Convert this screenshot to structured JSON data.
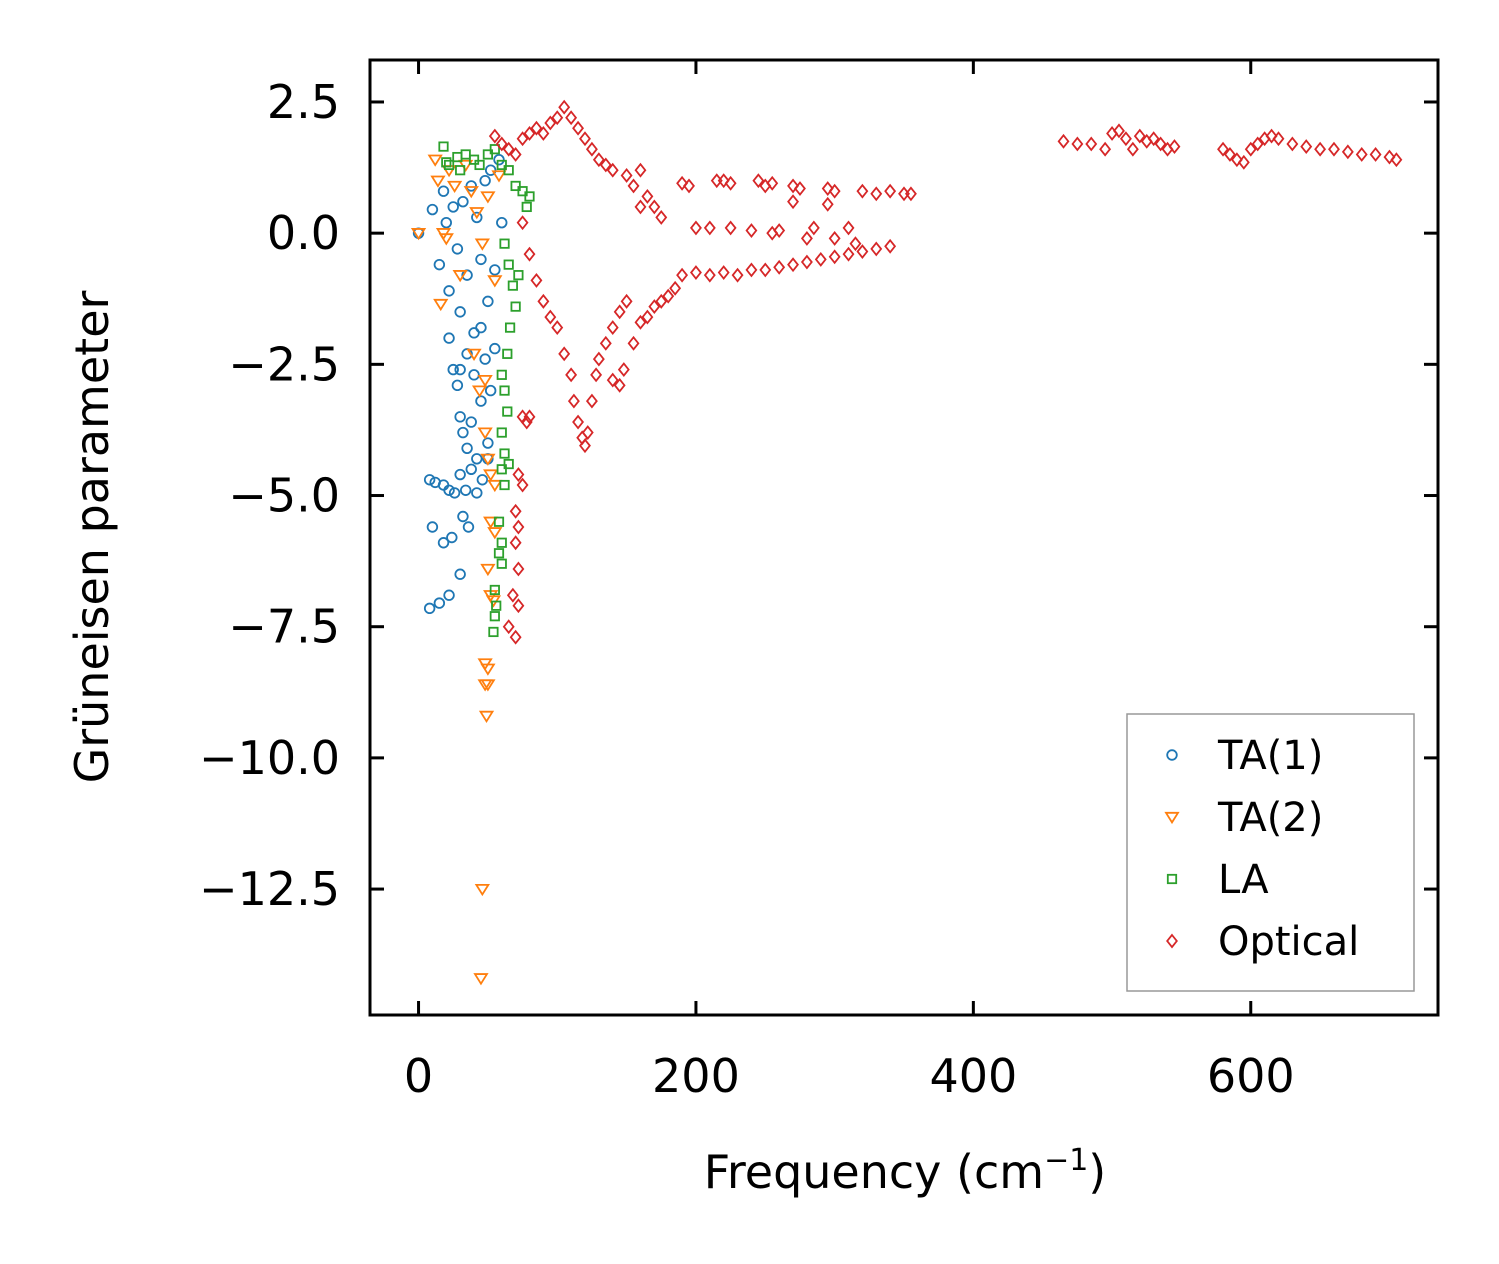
{
  "chart_data": {
    "type": "scatter",
    "title": "",
    "xlabel": "Frequency (cm",
    "xlabel_sup": "−1",
    "xlabel_close": ")",
    "ylabel": "Grüneisen parameter",
    "xlim": [
      -35,
      735
    ],
    "ylim": [
      -14.9,
      3.3
    ],
    "x_ticks": [
      {
        "value": 0,
        "label": "0"
      },
      {
        "value": 200,
        "label": "200"
      },
      {
        "value": 400,
        "label": "400"
      },
      {
        "value": 600,
        "label": "600"
      }
    ],
    "y_ticks": [
      {
        "value": 2.5,
        "label": "2.5"
      },
      {
        "value": 0,
        "label": "0.0"
      },
      {
        "value": -2.5,
        "label": "−2.5"
      },
      {
        "value": -5,
        "label": "−5.0"
      },
      {
        "value": -7.5,
        "label": "−7.5"
      },
      {
        "value": -10,
        "label": "−10.0"
      },
      {
        "value": -12.5,
        "label": "−12.5"
      }
    ],
    "legend_position": "lower-right",
    "series": [
      {
        "name": "TA(1)",
        "color": "#1f77b4",
        "marker": "circle",
        "points": [
          [
            0,
            0
          ],
          [
            10,
            0.45
          ],
          [
            15,
            -0.6
          ],
          [
            18,
            0.8
          ],
          [
            20,
            0.2
          ],
          [
            22,
            -1.1
          ],
          [
            25,
            0.5
          ],
          [
            28,
            -0.3
          ],
          [
            30,
            -1.5
          ],
          [
            32,
            0.6
          ],
          [
            35,
            -0.8
          ],
          [
            38,
            0.9
          ],
          [
            40,
            -1.9
          ],
          [
            42,
            0.3
          ],
          [
            45,
            -0.5
          ],
          [
            48,
            1.0
          ],
          [
            50,
            -1.3
          ],
          [
            52,
            1.2
          ],
          [
            55,
            -0.7
          ],
          [
            58,
            1.4
          ],
          [
            60,
            0.2
          ],
          [
            22,
            -2.0
          ],
          [
            25,
            -2.6
          ],
          [
            28,
            -2.9
          ],
          [
            30,
            -3.5
          ],
          [
            32,
            -3.8
          ],
          [
            35,
            -4.1
          ],
          [
            38,
            -3.6
          ],
          [
            40,
            -2.7
          ],
          [
            42,
            -4.3
          ],
          [
            45,
            -3.2
          ],
          [
            48,
            -2.4
          ],
          [
            50,
            -4.0
          ],
          [
            52,
            -3.0
          ],
          [
            55,
            -2.2
          ],
          [
            35,
            -2.3
          ],
          [
            30,
            -2.6
          ],
          [
            45,
            -1.8
          ],
          [
            8,
            -4.7
          ],
          [
            12,
            -4.75
          ],
          [
            18,
            -4.8
          ],
          [
            22,
            -4.9
          ],
          [
            26,
            -4.95
          ],
          [
            30,
            -4.6
          ],
          [
            34,
            -4.9
          ],
          [
            38,
            -4.5
          ],
          [
            42,
            -4.95
          ],
          [
            46,
            -4.7
          ],
          [
            50,
            -4.3
          ],
          [
            10,
            -5.6
          ],
          [
            18,
            -5.9
          ],
          [
            24,
            -5.8
          ],
          [
            32,
            -5.4
          ],
          [
            36,
            -5.6
          ],
          [
            30,
            -6.5
          ],
          [
            8,
            -7.15
          ],
          [
            15,
            -7.05
          ],
          [
            22,
            -6.9
          ]
        ]
      },
      {
        "name": "TA(2)",
        "color": "#ff7f0e",
        "marker": "triangle-down",
        "points": [
          [
            0,
            0
          ],
          [
            12,
            1.4
          ],
          [
            14,
            1.0
          ],
          [
            16,
            -1.35
          ],
          [
            18,
            0.0
          ],
          [
            20,
            -0.1
          ],
          [
            22,
            1.2
          ],
          [
            26,
            0.9
          ],
          [
            30,
            -0.8
          ],
          [
            34,
            1.3
          ],
          [
            38,
            0.8
          ],
          [
            42,
            0.4
          ],
          [
            46,
            -0.2
          ],
          [
            50,
            0.7
          ],
          [
            55,
            -0.9
          ],
          [
            58,
            1.1
          ],
          [
            40,
            -2.3
          ],
          [
            44,
            -3.0
          ],
          [
            48,
            -3.8
          ],
          [
            50,
            -4.3
          ],
          [
            52,
            -4.6
          ],
          [
            55,
            -4.8
          ],
          [
            48,
            -2.8
          ],
          [
            52,
            -5.5
          ],
          [
            55,
            -5.7
          ],
          [
            50,
            -6.4
          ],
          [
            52,
            -6.9
          ],
          [
            54,
            -7.0
          ],
          [
            48,
            -8.2
          ],
          [
            50,
            -8.3
          ],
          [
            48,
            -8.6
          ],
          [
            50,
            -8.6
          ],
          [
            49,
            -9.2
          ],
          [
            46,
            -12.5
          ],
          [
            45,
            -14.2
          ]
        ]
      },
      {
        "name": "LA",
        "color": "#2ca02c",
        "marker": "square",
        "points": [
          [
            18,
            1.65
          ],
          [
            20,
            1.35
          ],
          [
            22,
            1.3
          ],
          [
            28,
            1.45
          ],
          [
            30,
            1.2
          ],
          [
            34,
            1.5
          ],
          [
            40,
            1.4
          ],
          [
            44,
            1.3
          ],
          [
            50,
            1.5
          ],
          [
            55,
            1.6
          ],
          [
            60,
            1.3
          ],
          [
            65,
            1.2
          ],
          [
            70,
            0.9
          ],
          [
            75,
            0.8
          ],
          [
            78,
            0.5
          ],
          [
            80,
            0.7
          ],
          [
            62,
            -0.2
          ],
          [
            65,
            -0.6
          ],
          [
            68,
            -1.0
          ],
          [
            70,
            -1.4
          ],
          [
            72,
            -0.8
          ],
          [
            66,
            -1.8
          ],
          [
            64,
            -2.3
          ],
          [
            60,
            -2.7
          ],
          [
            62,
            -3.0
          ],
          [
            64,
            -3.4
          ],
          [
            60,
            -3.8
          ],
          [
            62,
            -4.2
          ],
          [
            60,
            -4.5
          ],
          [
            62,
            -4.8
          ],
          [
            65,
            -4.4
          ],
          [
            58,
            -5.5
          ],
          [
            60,
            -5.9
          ],
          [
            58,
            -6.1
          ],
          [
            60,
            -6.3
          ],
          [
            55,
            -6.8
          ],
          [
            56,
            -7.1
          ],
          [
            55,
            -7.3
          ],
          [
            54,
            -7.6
          ]
        ]
      },
      {
        "name": "Optical",
        "color": "#d62728",
        "marker": "diamond",
        "points": [
          [
            55,
            1.85
          ],
          [
            60,
            1.7
          ],
          [
            65,
            1.6
          ],
          [
            70,
            1.5
          ],
          [
            75,
            1.8
          ],
          [
            80,
            1.9
          ],
          [
            85,
            2.0
          ],
          [
            90,
            1.9
          ],
          [
            95,
            2.1
          ],
          [
            100,
            2.2
          ],
          [
            105,
            2.4
          ],
          [
            110,
            2.2
          ],
          [
            115,
            2.0
          ],
          [
            120,
            1.8
          ],
          [
            125,
            1.6
          ],
          [
            130,
            1.4
          ],
          [
            135,
            1.3
          ],
          [
            140,
            1.2
          ],
          [
            150,
            1.1
          ],
          [
            155,
            0.9
          ],
          [
            160,
            1.2
          ],
          [
            165,
            0.7
          ],
          [
            170,
            0.5
          ],
          [
            190,
            0.95
          ],
          [
            195,
            0.9
          ],
          [
            215,
            1.0
          ],
          [
            220,
            1.0
          ],
          [
            225,
            0.95
          ],
          [
            245,
            1.0
          ],
          [
            250,
            0.9
          ],
          [
            255,
            0.95
          ],
          [
            270,
            0.9
          ],
          [
            275,
            0.85
          ],
          [
            270,
            0.6
          ],
          [
            295,
            0.85
          ],
          [
            300,
            0.8
          ],
          [
            295,
            0.55
          ],
          [
            320,
            0.8
          ],
          [
            330,
            0.75
          ],
          [
            340,
            0.8
          ],
          [
            350,
            0.75
          ],
          [
            355,
            0.75
          ],
          [
            160,
            0.5
          ],
          [
            175,
            0.3
          ],
          [
            200,
            0.1
          ],
          [
            210,
            0.1
          ],
          [
            225,
            0.1
          ],
          [
            240,
            0.05
          ],
          [
            255,
            0.0
          ],
          [
            260,
            0.05
          ],
          [
            280,
            -0.1
          ],
          [
            285,
            0.1
          ],
          [
            300,
            -0.1
          ],
          [
            310,
            0.1
          ],
          [
            315,
            -0.2
          ],
          [
            75,
            0.2
          ],
          [
            80,
            -0.4
          ],
          [
            85,
            -0.9
          ],
          [
            90,
            -1.3
          ],
          [
            95,
            -1.6
          ],
          [
            100,
            -1.8
          ],
          [
            105,
            -2.3
          ],
          [
            110,
            -2.7
          ],
          [
            112,
            -3.2
          ],
          [
            115,
            -3.6
          ],
          [
            118,
            -3.9
          ],
          [
            120,
            -4.05
          ],
          [
            122,
            -3.8
          ],
          [
            125,
            -3.2
          ],
          [
            128,
            -2.7
          ],
          [
            130,
            -2.4
          ],
          [
            135,
            -2.1
          ],
          [
            140,
            -1.8
          ],
          [
            145,
            -1.5
          ],
          [
            150,
            -1.3
          ],
          [
            140,
            -2.8
          ],
          [
            145,
            -2.9
          ],
          [
            148,
            -2.6
          ],
          [
            155,
            -2.1
          ],
          [
            160,
            -1.7
          ],
          [
            165,
            -1.6
          ],
          [
            170,
            -1.4
          ],
          [
            175,
            -1.3
          ],
          [
            180,
            -1.2
          ],
          [
            185,
            -1.05
          ],
          [
            190,
            -0.8
          ],
          [
            200,
            -0.75
          ],
          [
            210,
            -0.8
          ],
          [
            220,
            -0.75
          ],
          [
            230,
            -0.8
          ],
          [
            240,
            -0.7
          ],
          [
            250,
            -0.7
          ],
          [
            260,
            -0.65
          ],
          [
            270,
            -0.6
          ],
          [
            280,
            -0.55
          ],
          [
            290,
            -0.5
          ],
          [
            300,
            -0.45
          ],
          [
            310,
            -0.4
          ],
          [
            320,
            -0.35
          ],
          [
            330,
            -0.3
          ],
          [
            340,
            -0.25
          ],
          [
            80,
            -3.5
          ],
          [
            78,
            -3.6
          ],
          [
            75,
            -3.5
          ],
          [
            72,
            -4.6
          ],
          [
            75,
            -4.8
          ],
          [
            70,
            -5.3
          ],
          [
            72,
            -5.6
          ],
          [
            70,
            -5.9
          ],
          [
            72,
            -6.4
          ],
          [
            68,
            -6.9
          ],
          [
            72,
            -7.1
          ],
          [
            65,
            -7.5
          ],
          [
            70,
            -7.7
          ],
          [
            465,
            1.75
          ],
          [
            475,
            1.7
          ],
          [
            485,
            1.7
          ],
          [
            495,
            1.6
          ],
          [
            500,
            1.9
          ],
          [
            505,
            1.95
          ],
          [
            510,
            1.8
          ],
          [
            515,
            1.6
          ],
          [
            520,
            1.85
          ],
          [
            525,
            1.75
          ],
          [
            530,
            1.8
          ],
          [
            535,
            1.7
          ],
          [
            540,
            1.6
          ],
          [
            545,
            1.65
          ],
          [
            580,
            1.6
          ],
          [
            585,
            1.5
          ],
          [
            590,
            1.4
          ],
          [
            595,
            1.35
          ],
          [
            600,
            1.6
          ],
          [
            605,
            1.7
          ],
          [
            610,
            1.8
          ],
          [
            615,
            1.85
          ],
          [
            620,
            1.8
          ],
          [
            630,
            1.7
          ],
          [
            640,
            1.65
          ],
          [
            650,
            1.6
          ],
          [
            660,
            1.6
          ],
          [
            670,
            1.55
          ],
          [
            680,
            1.5
          ],
          [
            690,
            1.5
          ],
          [
            700,
            1.45
          ],
          [
            705,
            1.4
          ]
        ]
      }
    ]
  }
}
